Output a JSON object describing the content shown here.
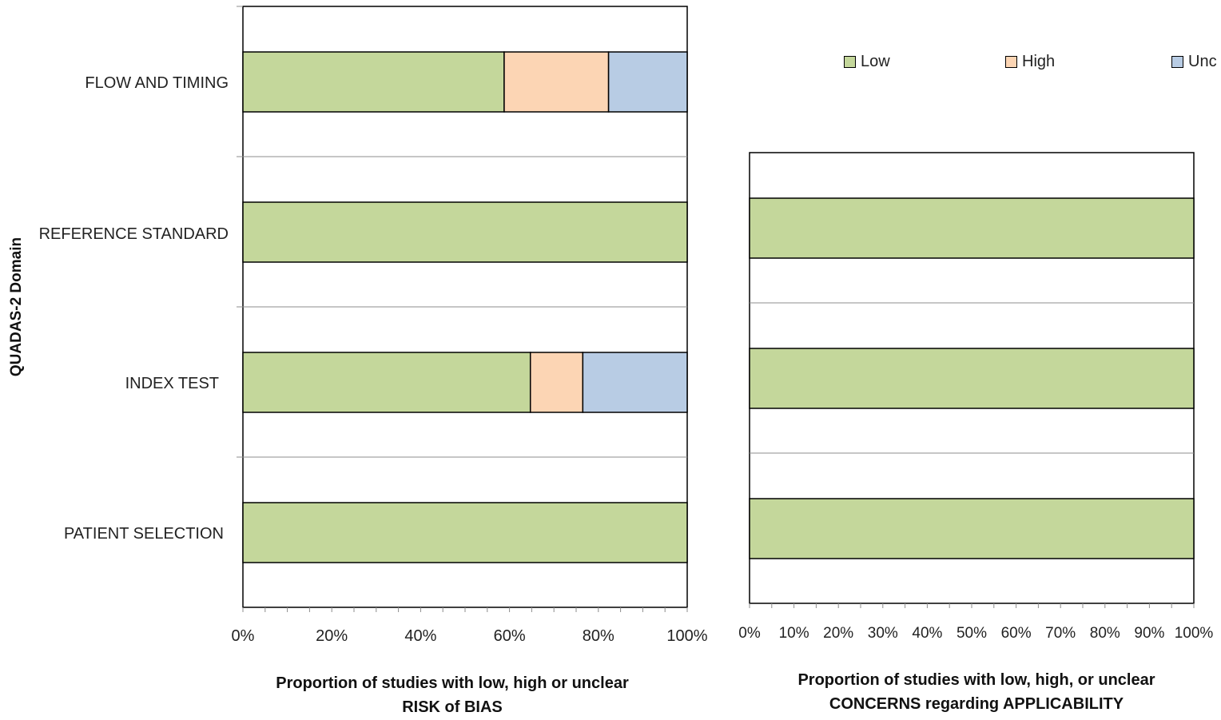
{
  "chart_data": [
    {
      "type": "bar",
      "orientation": "horizontal",
      "stacked": true,
      "categories": [
        "PATIENT SELECTION",
        "INDEX TEST",
        "REFERENCE STANDARD",
        "FLOW AND TIMING"
      ],
      "series": [
        {
          "name": "Low",
          "values": [
            100,
            64.7,
            100,
            58.8
          ],
          "color": "#c4d79b"
        },
        {
          "name": "High",
          "values": [
            0,
            11.8,
            0,
            23.5
          ],
          "color": "#fcd5b4"
        },
        {
          "name": "Unclear",
          "values": [
            0,
            23.5,
            0,
            17.7
          ],
          "color": "#b8cce4"
        }
      ],
      "xlim": [
        0,
        100
      ],
      "xticks": [
        "0%",
        "20%",
        "40%",
        "60%",
        "80%",
        "100%"
      ],
      "xlabel_line1": "Proportion of studies with low, high or unclear",
      "xlabel_line2": "RISK of BIAS",
      "ylabel": "QUADAS-2 Domain",
      "grid": true
    },
    {
      "type": "bar",
      "orientation": "horizontal",
      "stacked": true,
      "categories": [
        "PATIENT SELECTION",
        "INDEX TEST",
        "REFERENCE STANDARD"
      ],
      "series": [
        {
          "name": "Low",
          "values": [
            100,
            100,
            100
          ],
          "color": "#c4d79b"
        },
        {
          "name": "High",
          "values": [
            0,
            0,
            0
          ],
          "color": "#fcd5b4"
        },
        {
          "name": "Unclear",
          "values": [
            0,
            0,
            0
          ],
          "color": "#b8cce4"
        }
      ],
      "xlim": [
        0,
        100
      ],
      "xticks": [
        "0%",
        "10%",
        "20%",
        "30%",
        "40%",
        "50%",
        "60%",
        "70%",
        "80%",
        "90%",
        "100%"
      ],
      "xlabel_line1": "Proportion of studies with low, high, or unclear",
      "xlabel_line2": "CONCERNS regarding APPLICABILITY",
      "grid": true
    }
  ],
  "legend": {
    "items": [
      {
        "label": "Low",
        "color": "#c4d79b"
      },
      {
        "label": "High",
        "color": "#fcd5b4"
      },
      {
        "label": "Unc",
        "color": "#b8cce4"
      }
    ],
    "placement": "top-right"
  }
}
